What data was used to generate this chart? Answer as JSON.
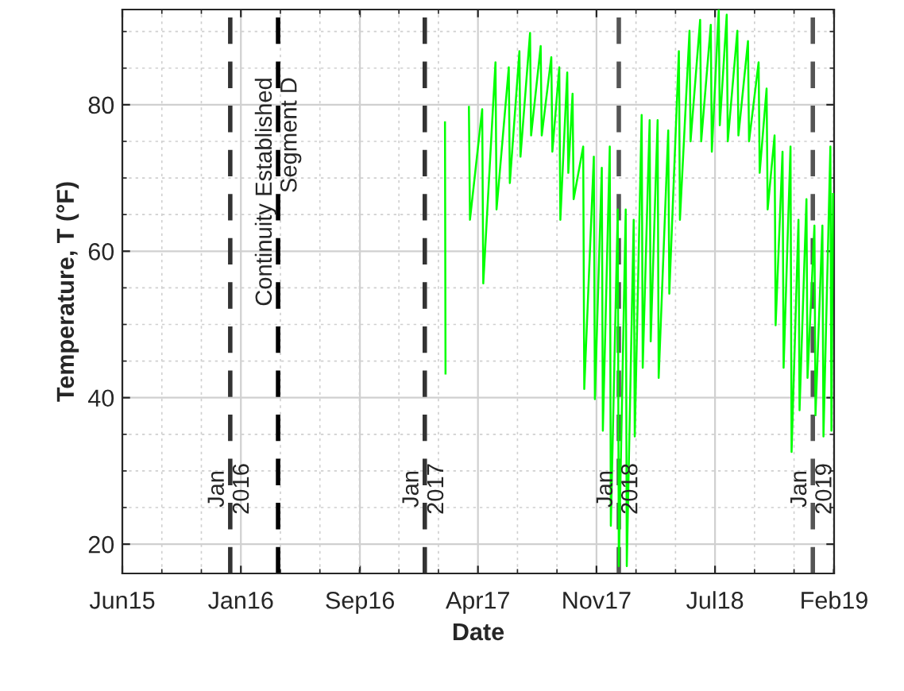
{
  "chart_data": {
    "type": "line",
    "xlabel": "Date",
    "ylabel": "Temperature, T (°F)",
    "xlim": [
      "2015-06-12",
      "2019-02-10"
    ],
    "ylim": [
      16,
      93
    ],
    "xticks": [
      {
        "value": "2015-06-12",
        "label": "Jun15"
      },
      {
        "value": "2016-01-21",
        "label": "Jan16"
      },
      {
        "value": "2016-09-01",
        "label": "Sep16"
      },
      {
        "value": "2017-04-11",
        "label": "Apr17"
      },
      {
        "value": "2017-11-20",
        "label": "Nov17"
      },
      {
        "value": "2018-07-01",
        "label": "Jul18"
      },
      {
        "value": "2019-02-10",
        "label": "Feb19"
      }
    ],
    "yticks": [
      20,
      40,
      60,
      80
    ],
    "grid": true,
    "line_style": "solid",
    "marker": "none",
    "x": [
      "2017-02-08",
      "2017-02-09",
      "2017-03-01",
      "2017-03-25",
      "2017-03-27",
      "2017-04-19",
      "2017-04-21",
      "2017-05-14",
      "2017-05-16",
      "2017-06-08",
      "2017-06-10",
      "2017-06-28",
      "2017-06-30",
      "2017-07-18",
      "2017-07-20",
      "2017-08-07",
      "2017-08-09",
      "2017-08-27",
      "2017-08-29",
      "2017-09-11",
      "2017-09-13",
      "2017-09-26",
      "2017-09-28",
      "2017-10-06",
      "2017-10-08",
      "2017-10-26",
      "2017-10-28",
      "2017-11-15",
      "2017-11-17",
      "2017-11-30",
      "2017-12-02",
      "2017-12-15",
      "2017-12-17",
      "2017-12-30",
      "2018-01-01",
      "2018-01-14",
      "2018-01-16",
      "2018-01-29",
      "2018-01-31",
      "2018-02-13",
      "2018-02-15",
      "2018-02-28",
      "2018-03-02",
      "2018-03-15",
      "2018-03-17",
      "2018-04-04",
      "2018-04-06",
      "2018-04-24",
      "2018-04-26",
      "2018-05-14",
      "2018-05-16",
      "2018-06-03",
      "2018-06-05",
      "2018-06-23",
      "2018-06-25",
      "2018-07-08",
      "2018-07-10",
      "2018-07-23",
      "2018-07-25",
      "2018-08-12",
      "2018-08-14",
      "2018-09-01",
      "2018-09-03",
      "2018-09-21",
      "2018-09-23",
      "2018-10-06",
      "2018-10-08",
      "2018-10-21",
      "2018-10-23",
      "2018-11-05",
      "2018-11-07",
      "2018-11-20",
      "2018-11-22",
      "2018-12-05",
      "2018-12-07",
      "2018-12-20",
      "2018-12-22",
      "2019-01-04",
      "2019-01-06",
      "2019-01-19",
      "2019-01-21",
      "2019-02-03",
      "2019-02-05",
      "2019-02-08"
    ],
    "series": [
      {
        "color": "#00ff00",
        "values": [
          77.6,
          43.3,
          null,
          79.7,
          64.3,
          79.4,
          55.6,
          85.8,
          65.7,
          85.1,
          69.3,
          87.3,
          72.9,
          89.8,
          75.8,
          88.0,
          75.8,
          86.5,
          73.6,
          85.1,
          64.3,
          84.4,
          70.7,
          81.5,
          67.1,
          74.3,
          41.2,
          72.9,
          39.8,
          71.4,
          35.5,
          74.3,
          22.5,
          65.7,
          17,
          65.7,
          17,
          64.3,
          34.7,
          78.6,
          44.1,
          77.9,
          47.7,
          77.9,
          42.7,
          76.5,
          54.2,
          87.3,
          64.3,
          90.1,
          75.0,
          91.6,
          75.0,
          90.9,
          73.6,
          93,
          77.2,
          92.3,
          75.0,
          90.1,
          75.8,
          88.7,
          75.0,
          85.8,
          70.7,
          82.2,
          65.7,
          75.8,
          49.9,
          73.6,
          44.1,
          74.3,
          32.6,
          64.3,
          38.3,
          67.1,
          42.7,
          63.5,
          37.6,
          63.5,
          34.7,
          74.3,
          35.5,
          67.8
        ]
      }
    ],
    "ref_lines": [
      {
        "axis": "x",
        "value": "2016-01-01",
        "label": "Jan\n2016",
        "color": "#333333",
        "line_style": "dashed"
      },
      {
        "axis": "x",
        "value": "2016-03-31",
        "label": "Continuity Established\nSegment D",
        "color": "#000000",
        "line_style": "dashed"
      },
      {
        "axis": "x",
        "value": "2017-01-01",
        "label": "Jan\n2017",
        "color": "#333333",
        "line_style": "dashed"
      },
      {
        "axis": "x",
        "value": "2018-01-01",
        "label": "Jan\n2018",
        "color": "#555555",
        "line_style": "dashed"
      },
      {
        "axis": "x",
        "value": "2019-01-01",
        "label": "Jan\n2019",
        "color": "#555555",
        "line_style": "dashed"
      }
    ]
  }
}
